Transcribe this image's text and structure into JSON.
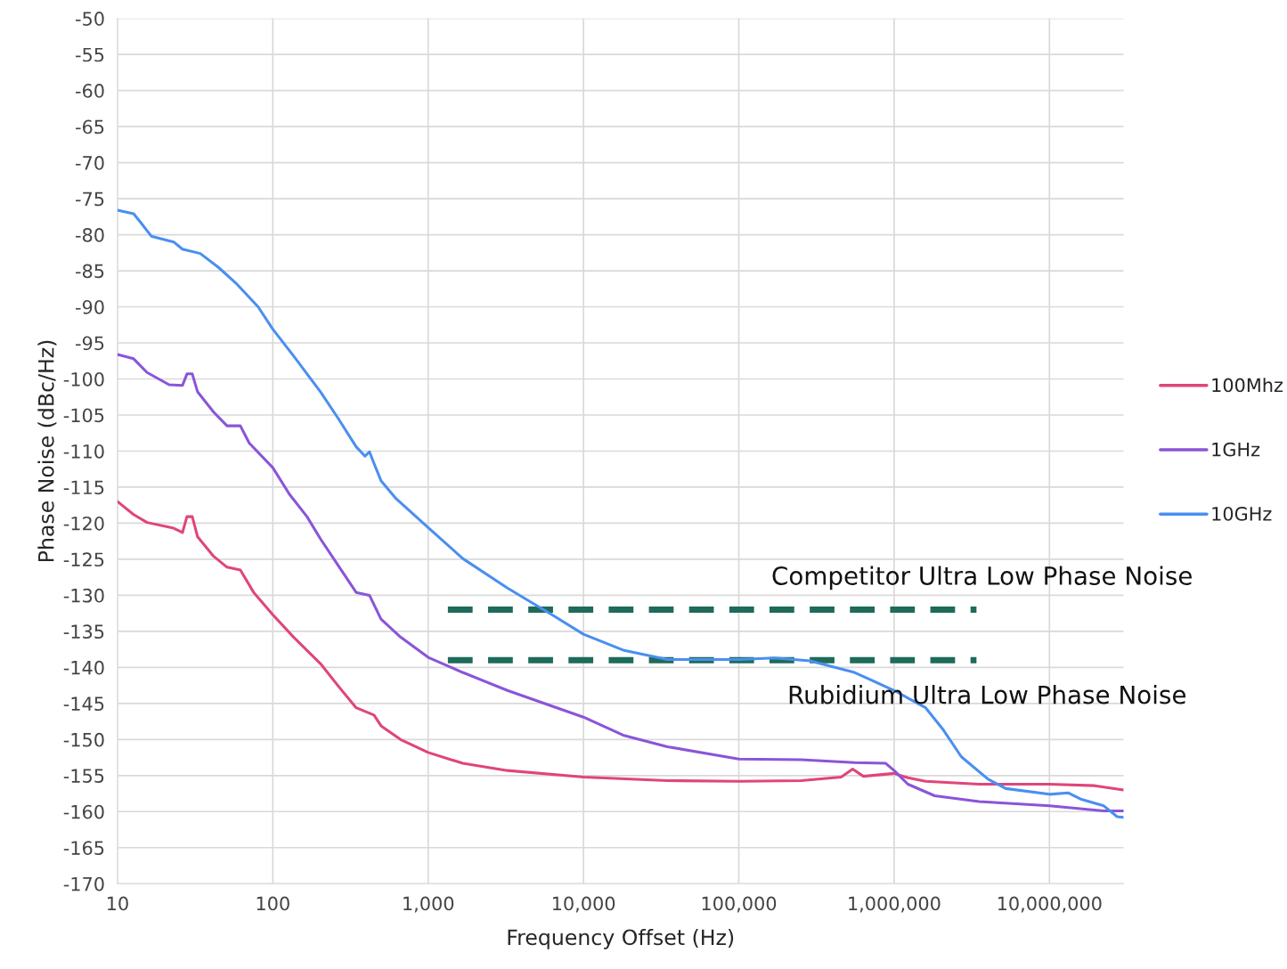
{
  "chart_data": {
    "type": "line",
    "xlabel": "Frequency Offset (Hz)",
    "ylabel": "Phase Noise (dBc/Hz)",
    "log": "x",
    "grid": true,
    "legend": "right",
    "line_style": "solid",
    "marker": "none",
    "xlim": [
      10,
      30000000
    ],
    "xticks": [
      10,
      100,
      {
        "value": 1000,
        "label": "1,000"
      },
      {
        "value": 10000,
        "label": "10,000"
      },
      {
        "value": 100000,
        "label": "100,000"
      },
      {
        "value": 1000000,
        "label": "1,000,000"
      },
      {
        "value": 10000000,
        "label": "10,000,000"
      }
    ],
    "ylim": [
      -170,
      -50
    ],
    "yticks": [
      -170,
      -165,
      -160,
      -155,
      -150,
      -145,
      -140,
      -135,
      -130,
      -125,
      -120,
      -115,
      -110,
      -105,
      -100,
      -95,
      -90,
      -85,
      -80,
      -75,
      -70,
      -65,
      -60,
      -55,
      -50
    ],
    "series": [
      {
        "name": "100Mhz",
        "color": "#e0457b",
        "x": [
          10,
          12.7,
          15.5,
          23,
          26.2,
          28,
          30.3,
          32.8,
          41.6,
          50.7,
          61.8,
          75.3,
          100,
          136,
          203,
          264,
          344,
          448,
          497,
          664,
          1000,
          1670,
          3240,
          10000,
          34750,
          100000,
          251800,
          456000,
          540800,
          633900,
          1000000,
          1227000,
          1596000,
          3524000,
          10000000,
          19590000,
          30000000
        ],
        "values": [
          -117,
          -118.8,
          -119.9,
          -120.7,
          -121.3,
          -119.1,
          -119.1,
          -121.9,
          -124.6,
          -126.1,
          -126.5,
          -129.6,
          -132.7,
          -135.8,
          -139.5,
          -142.6,
          -145.6,
          -146.6,
          -148.1,
          -150,
          -151.8,
          -153.3,
          -154.3,
          -155.2,
          -155.7,
          -155.8,
          -155.7,
          -155.2,
          -154.1,
          -155.1,
          -154.7,
          -155.3,
          -155.8,
          -156.2,
          -156.2,
          -156.4,
          -157
        ]
      },
      {
        "name": "1GHz",
        "color": "#8a55d8",
        "x": [
          10,
          12.7,
          15.5,
          21.5,
          26.2,
          28,
          30.3,
          32.8,
          41.6,
          50.7,
          61.8,
          70.5,
          100,
          128,
          166,
          203,
          264,
          344,
          419,
          497,
          664,
          1000,
          1670,
          3240,
          10000,
          17990,
          34750,
          100000,
          251800,
          555900,
          883100,
          1000000,
          1227000,
          1824000,
          3524000,
          10000000,
          22390000,
          30000000
        ],
        "values": [
          -96.6,
          -97.2,
          -99.1,
          -100.8,
          -100.9,
          -99.3,
          -99.3,
          -101.8,
          -104.6,
          -106.5,
          -106.5,
          -108.9,
          -112.3,
          -116,
          -119.1,
          -122.2,
          -125.9,
          -129.6,
          -130,
          -133.3,
          -135.8,
          -138.6,
          -140.7,
          -143.2,
          -146.9,
          -149.4,
          -151,
          -152.7,
          -152.8,
          -153.2,
          -153.3,
          -154.3,
          -156.2,
          -157.8,
          -158.6,
          -159.2,
          -159.9,
          -159.9
        ]
      },
      {
        "name": "10GHz",
        "color": "#4a8ff0",
        "x": [
          10,
          12.7,
          14.1,
          16.5,
          23,
          26.2,
          34.1,
          44.5,
          57.8,
          80.4,
          100,
          136,
          203,
          264,
          344,
          392,
          419,
          448,
          497,
          622,
          1000,
          1670,
          3240,
          6270,
          10000,
          17990,
          34750,
          100000,
          169400,
          287100,
          555900,
          1000000,
          1596000,
          2080000,
          2710000,
          4027000,
          5236000,
          10000000,
          13180000,
          16070000,
          22390000,
          27290000,
          30000000
        ],
        "values": [
          -76.6,
          -77.1,
          -78.3,
          -80.2,
          -81,
          -82,
          -82.6,
          -84.5,
          -86.7,
          -90,
          -93.1,
          -96.8,
          -101.8,
          -105.5,
          -109.4,
          -110.7,
          -110.1,
          -111.7,
          -114.1,
          -116.6,
          -120.6,
          -124.9,
          -129,
          -132.7,
          -135.4,
          -137.6,
          -138.9,
          -138.9,
          -138.7,
          -139.1,
          -140.7,
          -143.2,
          -145.6,
          -148.7,
          -152.4,
          -155.5,
          -156.8,
          -157.6,
          -157.4,
          -158.3,
          -159.2,
          -160.7,
          -160.8
        ]
      },
      {
        "name": "Competitor Ultra Low Phase Noise",
        "color": "#1e6b5a",
        "line_style": "dashed",
        "x": [
          1340,
          3390000
        ],
        "values": [
          -132,
          -132
        ]
      },
      {
        "name": "Rubidium Ultra Low Phase Noise",
        "color": "#1e6b5a",
        "line_style": "dashed",
        "x": [
          1340,
          3390000
        ],
        "values": [
          -139,
          -139
        ]
      }
    ]
  }
}
